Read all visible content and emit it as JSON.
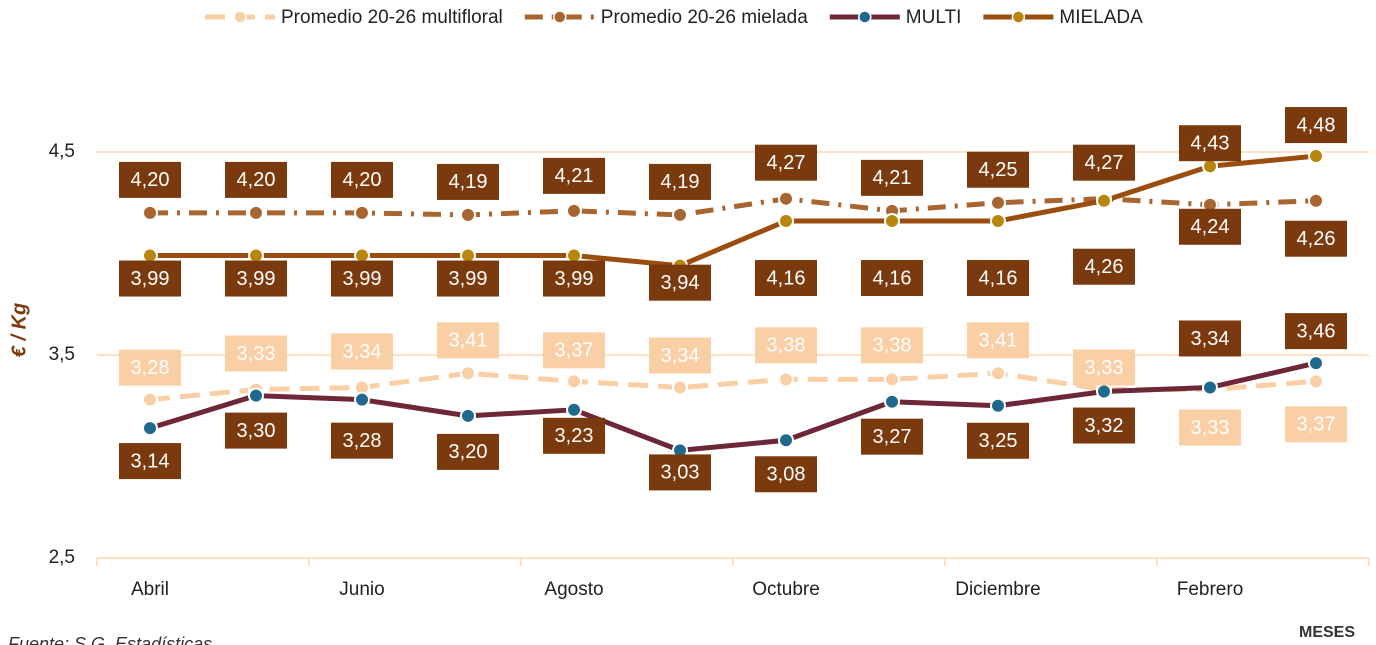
{
  "chart_data": {
    "type": "line",
    "y_label": "€ / Kg",
    "x_label": "MESES",
    "source": "Fuente: S.G. Estadísticas",
    "categories": [
      "Abril",
      null,
      "Junio",
      null,
      "Agosto",
      null,
      "Octubre",
      null,
      "Diciembre",
      null,
      "Febrero",
      null
    ],
    "ylim": [
      2.5,
      5.0
    ],
    "yticks": [
      {
        "value": 2.5,
        "label": "2,5"
      },
      {
        "value": 3.5,
        "label": "3,5"
      },
      {
        "value": 4.5,
        "label": "4,5"
      }
    ],
    "grid": true,
    "legend": "top",
    "series": [
      {
        "name": "Promedio 20-26 multifloral",
        "color": "#fbcfa6",
        "marker_color": "#fbcfa6",
        "label_color": "#fbcfa6",
        "values": [
          3.28,
          3.33,
          3.34,
          3.41,
          3.37,
          3.34,
          3.38,
          3.38,
          3.41,
          3.33,
          3.33,
          3.37
        ],
        "value_labels": [
          "3,28",
          "3,33",
          "3,34",
          "3,41",
          "3,37",
          "3,34",
          "3,38",
          "3,38",
          "3,41",
          "3,33",
          "3,33",
          "3,37"
        ]
      },
      {
        "name": "Promedio 20-26 mielada",
        "color": "#a8652f",
        "marker_color": "#a8652f",
        "label_color": "#7b3a0d",
        "values": [
          4.2,
          4.2,
          4.2,
          4.19,
          4.21,
          4.19,
          4.27,
          4.21,
          4.25,
          4.27,
          4.24,
          4.26
        ],
        "value_labels": [
          "4,20",
          "4,20",
          "4,20",
          "4,19",
          "4,21",
          "4,19",
          "4,27",
          "4,21",
          "4,25",
          "4,27",
          "4,24",
          "4,26"
        ]
      },
      {
        "name": "MULTI",
        "color": "#6e2737",
        "marker_color": "#1f6a8c",
        "label_color": "#7b3a0d",
        "values": [
          3.14,
          3.3,
          3.28,
          3.2,
          3.23,
          3.03,
          3.08,
          3.27,
          3.25,
          3.32,
          3.34,
          3.46
        ],
        "value_labels": [
          "3,14",
          "3,30",
          "3,28",
          "3,20",
          "3,23",
          "3,03",
          "3,08",
          "3,27",
          "3,25",
          "3,32",
          "3,34",
          "3,46"
        ]
      },
      {
        "name": "MIELADA",
        "color": "#9b4d0e",
        "marker_color": "#b8860b",
        "label_color": "#7b3a0d",
        "values": [
          3.99,
          3.99,
          3.99,
          3.99,
          3.99,
          3.94,
          4.16,
          4.16,
          4.16,
          4.26,
          4.43,
          4.48
        ],
        "value_labels": [
          "3,99",
          "3,99",
          "3,99",
          "3,99",
          "3,99",
          "3,94",
          "4,16",
          "4,16",
          "4,16",
          "4,26",
          "4,43",
          "4,48"
        ]
      }
    ]
  }
}
